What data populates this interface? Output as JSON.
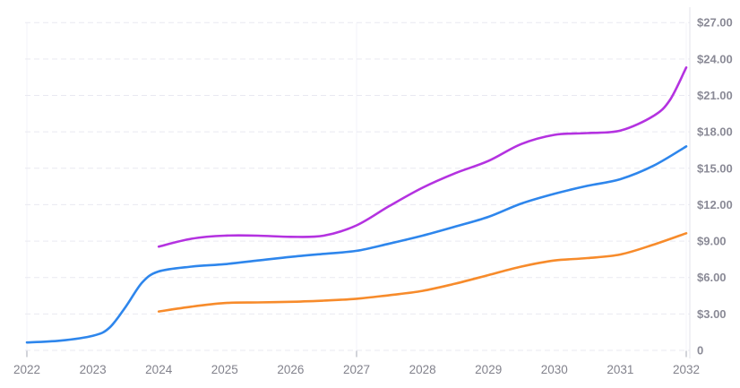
{
  "chart_data": {
    "type": "line",
    "title": "",
    "legend": "none",
    "x_axis": {
      "labels": [
        "2022",
        "2023",
        "2024",
        "2025",
        "2026",
        "2027",
        "2028",
        "2029",
        "2030",
        "2031",
        "2032"
      ],
      "values": [
        2022,
        2023,
        2024,
        2025,
        2026,
        2027,
        2028,
        2029,
        2030,
        2031,
        2032
      ],
      "range": [
        2022,
        2032
      ],
      "major_tick_values": [
        2022,
        2027,
        2032
      ]
    },
    "y_axis": {
      "position": "right",
      "unit": "USD",
      "labels": [
        "0",
        "$3.00",
        "$6.00",
        "$9.00",
        "$12.00",
        "$15.00",
        "$18.00",
        "$21.00",
        "$24.00",
        "$27.00"
      ],
      "values": [
        0,
        3,
        6,
        9,
        12,
        15,
        18,
        21,
        24,
        27
      ],
      "range": [
        0,
        27
      ]
    },
    "grid": {
      "horizontal": "dashed",
      "vertical_at": [
        2022,
        2027,
        2032
      ]
    },
    "series": [
      {
        "name": "blue-series",
        "color": "#2e86ec",
        "points": [
          [
            2022,
            0.65
          ],
          [
            2022.5,
            0.8
          ],
          [
            2023,
            1.2
          ],
          [
            2023.25,
            1.85
          ],
          [
            2023.5,
            3.6
          ],
          [
            2023.75,
            5.6
          ],
          [
            2024,
            6.5
          ],
          [
            2024.5,
            6.9
          ],
          [
            2025,
            7.1
          ],
          [
            2025.5,
            7.4
          ],
          [
            2026,
            7.7
          ],
          [
            2026.5,
            7.95
          ],
          [
            2027,
            8.2
          ],
          [
            2027.5,
            8.8
          ],
          [
            2028,
            9.45
          ],
          [
            2028.5,
            10.2
          ],
          [
            2029,
            11.0
          ],
          [
            2029.5,
            12.1
          ],
          [
            2030,
            12.9
          ],
          [
            2030.5,
            13.55
          ],
          [
            2031,
            14.1
          ],
          [
            2031.5,
            15.2
          ],
          [
            2032,
            16.8
          ]
        ]
      },
      {
        "name": "orange-series",
        "color": "#f78b2b",
        "points": [
          [
            2024,
            3.2
          ],
          [
            2024.5,
            3.6
          ],
          [
            2025,
            3.9
          ],
          [
            2025.5,
            3.95
          ],
          [
            2026,
            4.0
          ],
          [
            2026.5,
            4.1
          ],
          [
            2027,
            4.25
          ],
          [
            2027.5,
            4.55
          ],
          [
            2028,
            4.9
          ],
          [
            2028.5,
            5.5
          ],
          [
            2029,
            6.2
          ],
          [
            2029.5,
            6.9
          ],
          [
            2030,
            7.4
          ],
          [
            2030.5,
            7.6
          ],
          [
            2031,
            7.9
          ],
          [
            2031.5,
            8.7
          ],
          [
            2032,
            9.65
          ]
        ]
      },
      {
        "name": "purple-series",
        "color": "#b432e0",
        "points": [
          [
            2024,
            8.55
          ],
          [
            2024.5,
            9.2
          ],
          [
            2025,
            9.45
          ],
          [
            2025.5,
            9.45
          ],
          [
            2026,
            9.35
          ],
          [
            2026.5,
            9.45
          ],
          [
            2027,
            10.3
          ],
          [
            2027.5,
            11.9
          ],
          [
            2028,
            13.4
          ],
          [
            2028.5,
            14.6
          ],
          [
            2029,
            15.6
          ],
          [
            2029.5,
            17.0
          ],
          [
            2030,
            17.75
          ],
          [
            2030.5,
            17.9
          ],
          [
            2031,
            18.1
          ],
          [
            2031.5,
            19.3
          ],
          [
            2031.75,
            20.6
          ],
          [
            2032,
            23.3
          ]
        ]
      }
    ]
  },
  "colors": {
    "background": "#ffffff",
    "grid_line": "#e9e9f1",
    "vertical_grid_line": "#f3f3f8",
    "axis_line": "#e3e3ea",
    "tick": "#b9bcc6",
    "x_label": "#82828c",
    "y_label": "#8a8a96"
  }
}
